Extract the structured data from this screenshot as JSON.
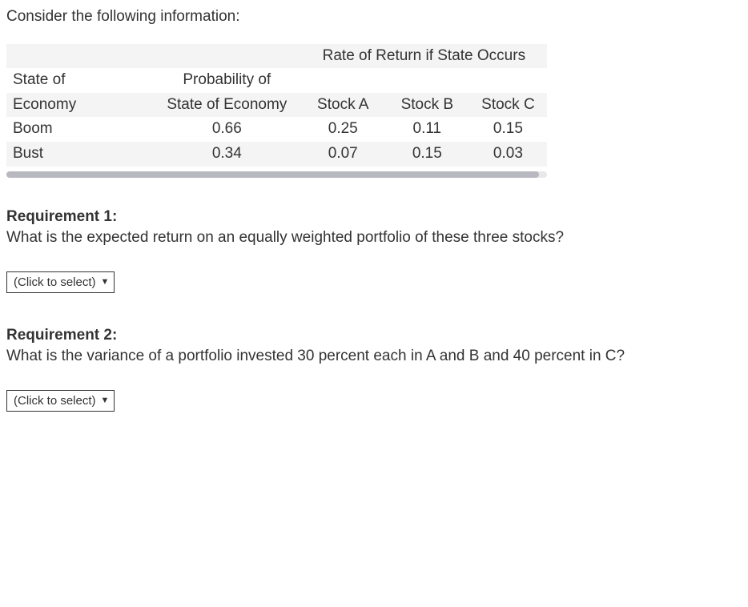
{
  "intro": "Consider the following information:",
  "table": {
    "rate_header": "Rate of Return if State Occurs",
    "col_headers": {
      "state_line1": "State of",
      "state_line2": "Economy",
      "prob_line1": "Probability of",
      "prob_line2": "State of Economy",
      "stock_a": "Stock A",
      "stock_b": "Stock B",
      "stock_c": "Stock C"
    },
    "rows": [
      {
        "state": "Boom",
        "prob": "0.66",
        "a": "0.25",
        "b": "0.11",
        "c": "0.15"
      },
      {
        "state": "Bust",
        "prob": "0.34",
        "a": "0.07",
        "b": "0.15",
        "c": "0.03"
      }
    ]
  },
  "req1": {
    "title": "Requirement 1:",
    "text": "What is the expected return on an equally weighted portfolio of these three stocks?"
  },
  "req2": {
    "title": "Requirement 2:",
    "text": "What is the variance of a portfolio invested 30 percent each in A and B and 40 percent in C?"
  },
  "select_placeholder": "(Click to select)",
  "colors": {
    "text": "#333333",
    "row_alt_bg": "#f4f4f4",
    "scrollbar_track": "#e8e8e8",
    "scrollbar_thumb": "#b8b8c0",
    "select_border": "#333333"
  }
}
